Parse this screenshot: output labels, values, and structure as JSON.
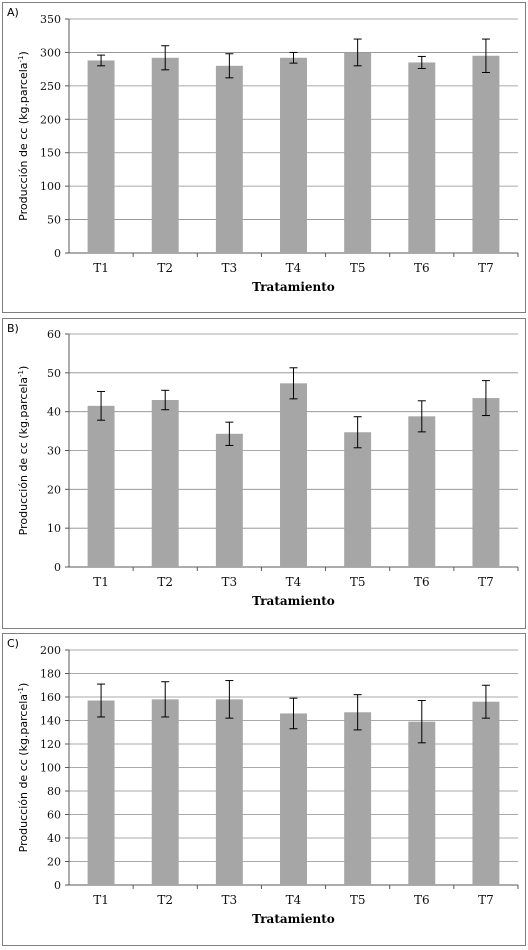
{
  "chart_data": [
    {
      "type": "bar",
      "panel_label": "A)",
      "categories": [
        "T1",
        "T2",
        "T3",
        "T4",
        "T5",
        "T6",
        "T7"
      ],
      "values": [
        288,
        292,
        280,
        292,
        300,
        285,
        295
      ],
      "errors": [
        8,
        18,
        18,
        8,
        20,
        9,
        25
      ],
      "xlabel": "Tratamiento",
      "ylabel": "Producción de cc (kg.parcela",
      "ylabel_sup": "-1",
      "ylabel_end": ")",
      "ylim": [
        0,
        350
      ],
      "yticks": [
        0,
        50,
        100,
        150,
        200,
        250,
        300,
        350
      ],
      "grid": true,
      "bar_color": "#a6a6a6"
    },
    {
      "type": "bar",
      "panel_label": "B)",
      "categories": [
        "T1",
        "T2",
        "T3",
        "T4",
        "T5",
        "T6",
        "T7"
      ],
      "values": [
        41.5,
        43,
        34.3,
        47.3,
        34.7,
        38.8,
        43.5
      ],
      "errors": [
        3.7,
        2.5,
        3.0,
        4.0,
        4.0,
        4.0,
        4.5
      ],
      "xlabel": "Tratamiento",
      "ylabel": "Producción de cc (kg.parcela",
      "ylabel_sup": "-1",
      "ylabel_end": ")",
      "ylim": [
        0,
        60
      ],
      "yticks": [
        0,
        10,
        20,
        30,
        40,
        50,
        60
      ],
      "grid": true,
      "bar_color": "#a6a6a6"
    },
    {
      "type": "bar",
      "panel_label": "C)",
      "categories": [
        "T1",
        "T2",
        "T3",
        "T4",
        "T5",
        "T6",
        "T7"
      ],
      "values": [
        157,
        158,
        158,
        146,
        147,
        139,
        156
      ],
      "errors": [
        14,
        15,
        16,
        13,
        15,
        18,
        14
      ],
      "xlabel": "Tratamiento",
      "ylabel": "Producción de cc (kg.parcela",
      "ylabel_sup": "-1",
      "ylabel_end": ")",
      "ylim": [
        0,
        200
      ],
      "yticks": [
        0,
        20,
        40,
        60,
        80,
        100,
        120,
        140,
        160,
        180,
        200
      ],
      "grid": true,
      "bar_color": "#a6a6a6"
    }
  ]
}
